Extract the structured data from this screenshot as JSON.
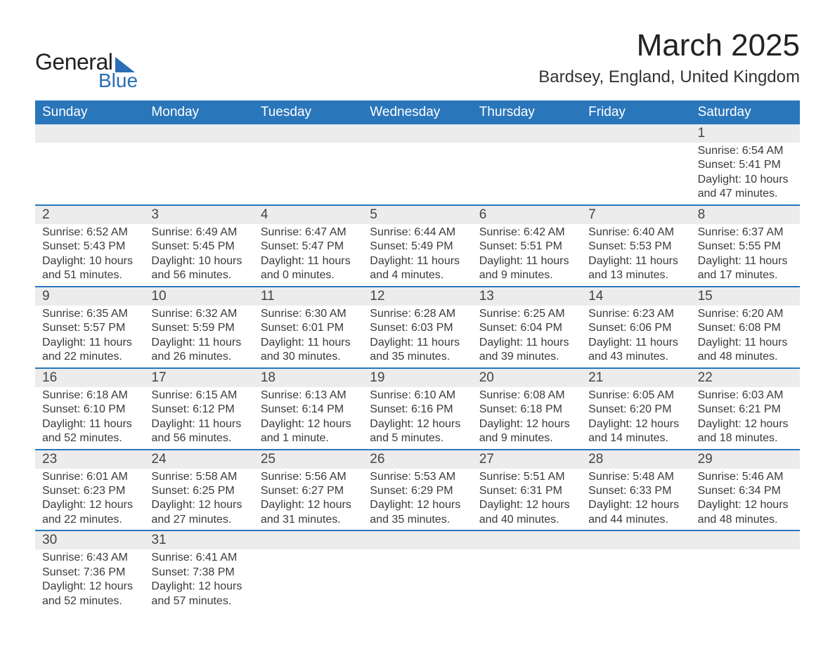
{
  "logo": {
    "main": "General",
    "sub": "Blue"
  },
  "title": {
    "month": "March 2025",
    "location": "Bardsey, England, United Kingdom"
  },
  "colors": {
    "header_bg": "#2a76bb",
    "header_text": "#ffffff",
    "stripe_bg": "#ececec",
    "body_text": "#3a3a3a",
    "accent": "#2a6eb6"
  },
  "daynames": [
    "Sunday",
    "Monday",
    "Tuesday",
    "Wednesday",
    "Thursday",
    "Friday",
    "Saturday"
  ],
  "weeks": [
    [
      null,
      null,
      null,
      null,
      null,
      null,
      {
        "n": "1",
        "sr": "6:54 AM",
        "ss": "5:41 PM",
        "dl": "10 hours and 47 minutes."
      }
    ],
    [
      {
        "n": "2",
        "sr": "6:52 AM",
        "ss": "5:43 PM",
        "dl": "10 hours and 51 minutes."
      },
      {
        "n": "3",
        "sr": "6:49 AM",
        "ss": "5:45 PM",
        "dl": "10 hours and 56 minutes."
      },
      {
        "n": "4",
        "sr": "6:47 AM",
        "ss": "5:47 PM",
        "dl": "11 hours and 0 minutes."
      },
      {
        "n": "5",
        "sr": "6:44 AM",
        "ss": "5:49 PM",
        "dl": "11 hours and 4 minutes."
      },
      {
        "n": "6",
        "sr": "6:42 AM",
        "ss": "5:51 PM",
        "dl": "11 hours and 9 minutes."
      },
      {
        "n": "7",
        "sr": "6:40 AM",
        "ss": "5:53 PM",
        "dl": "11 hours and 13 minutes."
      },
      {
        "n": "8",
        "sr": "6:37 AM",
        "ss": "5:55 PM",
        "dl": "11 hours and 17 minutes."
      }
    ],
    [
      {
        "n": "9",
        "sr": "6:35 AM",
        "ss": "5:57 PM",
        "dl": "11 hours and 22 minutes."
      },
      {
        "n": "10",
        "sr": "6:32 AM",
        "ss": "5:59 PM",
        "dl": "11 hours and 26 minutes."
      },
      {
        "n": "11",
        "sr": "6:30 AM",
        "ss": "6:01 PM",
        "dl": "11 hours and 30 minutes."
      },
      {
        "n": "12",
        "sr": "6:28 AM",
        "ss": "6:03 PM",
        "dl": "11 hours and 35 minutes."
      },
      {
        "n": "13",
        "sr": "6:25 AM",
        "ss": "6:04 PM",
        "dl": "11 hours and 39 minutes."
      },
      {
        "n": "14",
        "sr": "6:23 AM",
        "ss": "6:06 PM",
        "dl": "11 hours and 43 minutes."
      },
      {
        "n": "15",
        "sr": "6:20 AM",
        "ss": "6:08 PM",
        "dl": "11 hours and 48 minutes."
      }
    ],
    [
      {
        "n": "16",
        "sr": "6:18 AM",
        "ss": "6:10 PM",
        "dl": "11 hours and 52 minutes."
      },
      {
        "n": "17",
        "sr": "6:15 AM",
        "ss": "6:12 PM",
        "dl": "11 hours and 56 minutes."
      },
      {
        "n": "18",
        "sr": "6:13 AM",
        "ss": "6:14 PM",
        "dl": "12 hours and 1 minute."
      },
      {
        "n": "19",
        "sr": "6:10 AM",
        "ss": "6:16 PM",
        "dl": "12 hours and 5 minutes."
      },
      {
        "n": "20",
        "sr": "6:08 AM",
        "ss": "6:18 PM",
        "dl": "12 hours and 9 minutes."
      },
      {
        "n": "21",
        "sr": "6:05 AM",
        "ss": "6:20 PM",
        "dl": "12 hours and 14 minutes."
      },
      {
        "n": "22",
        "sr": "6:03 AM",
        "ss": "6:21 PM",
        "dl": "12 hours and 18 minutes."
      }
    ],
    [
      {
        "n": "23",
        "sr": "6:01 AM",
        "ss": "6:23 PM",
        "dl": "12 hours and 22 minutes."
      },
      {
        "n": "24",
        "sr": "5:58 AM",
        "ss": "6:25 PM",
        "dl": "12 hours and 27 minutes."
      },
      {
        "n": "25",
        "sr": "5:56 AM",
        "ss": "6:27 PM",
        "dl": "12 hours and 31 minutes."
      },
      {
        "n": "26",
        "sr": "5:53 AM",
        "ss": "6:29 PM",
        "dl": "12 hours and 35 minutes."
      },
      {
        "n": "27",
        "sr": "5:51 AM",
        "ss": "6:31 PM",
        "dl": "12 hours and 40 minutes."
      },
      {
        "n": "28",
        "sr": "5:48 AM",
        "ss": "6:33 PM",
        "dl": "12 hours and 44 minutes."
      },
      {
        "n": "29",
        "sr": "5:46 AM",
        "ss": "6:34 PM",
        "dl": "12 hours and 48 minutes."
      }
    ],
    [
      {
        "n": "30",
        "sr": "6:43 AM",
        "ss": "7:36 PM",
        "dl": "12 hours and 52 minutes."
      },
      {
        "n": "31",
        "sr": "6:41 AM",
        "ss": "7:38 PM",
        "dl": "12 hours and 57 minutes."
      },
      null,
      null,
      null,
      null,
      null
    ]
  ],
  "labels": {
    "sunrise": "Sunrise: ",
    "sunset": "Sunset: ",
    "daylight": "Daylight: "
  }
}
